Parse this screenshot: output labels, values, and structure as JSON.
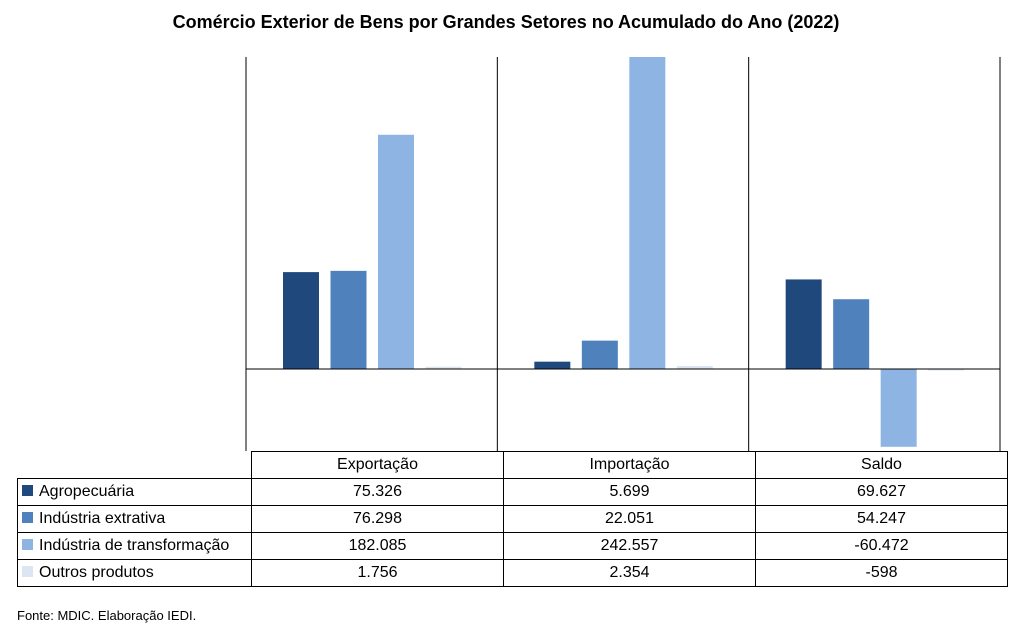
{
  "chart_data": {
    "type": "bar",
    "title": "Comércio Exterior de Bens por Grandes Setores no Acumulado do Ano (2022)",
    "categories": [
      "Exportação",
      "Importação",
      "Saldo"
    ],
    "series": [
      {
        "name": "Agropecuária",
        "color": "#1f497d",
        "values": [
          75.326,
          5.699,
          69.627
        ],
        "labels": [
          "75.326",
          "5.699",
          "69.627"
        ]
      },
      {
        "name": "Indústria extrativa",
        "color": "#4f81bd",
        "values": [
          76.298,
          22.051,
          54.247
        ],
        "labels": [
          "76.298",
          "22.051",
          "54.247"
        ]
      },
      {
        "name": "Indústria de transformação",
        "color": "#8eb4e3",
        "values": [
          182.085,
          242.557,
          -60.472
        ],
        "labels": [
          "182.085",
          "242.557",
          "-60.472"
        ]
      },
      {
        "name": "Outros produtos",
        "color": "#dce6f2",
        "values": [
          1.756,
          2.354,
          -0.598
        ],
        "labels": [
          "1.756",
          "2.354",
          "-598"
        ]
      }
    ],
    "ylim": [
      -63,
      242.557
    ],
    "legend": "table-bottom",
    "grid": false
  },
  "footer": {
    "source": "Fonte: MDIC. Elaboração IEDI."
  }
}
